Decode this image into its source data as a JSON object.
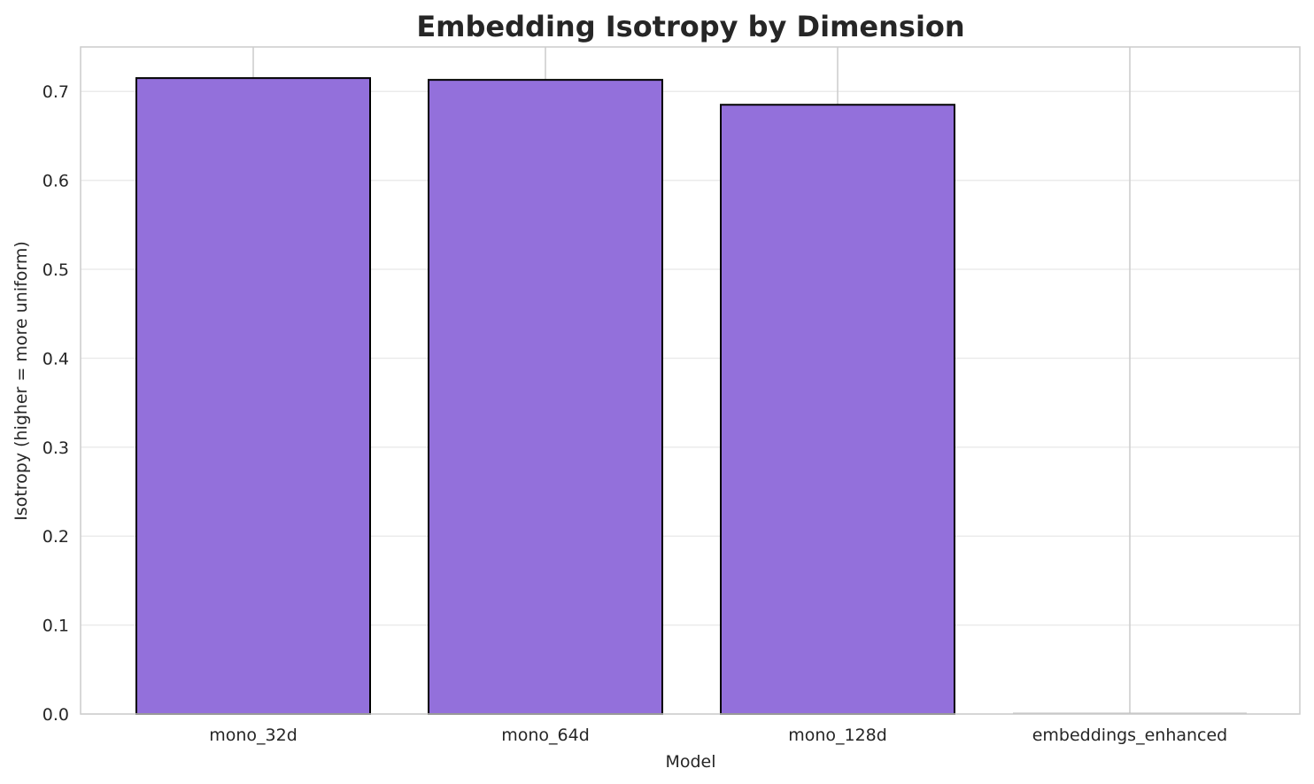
{
  "chart_data": {
    "type": "bar",
    "title": "Embedding Isotropy by Dimension",
    "xlabel": "Model",
    "ylabel": "Isotropy (higher = more uniform)",
    "categories": [
      "mono_32d",
      "mono_64d",
      "mono_128d",
      "embeddings_enhanced"
    ],
    "values": [
      0.715,
      0.713,
      0.685,
      0.0
    ],
    "ylim": [
      0,
      0.75
    ],
    "yticks": [
      0.0,
      0.1,
      0.2,
      0.3,
      0.4,
      0.5,
      0.6,
      0.7
    ],
    "ytick_labels": [
      "0.0",
      "0.1",
      "0.2",
      "0.3",
      "0.4",
      "0.5",
      "0.6",
      "0.7"
    ],
    "grid": true,
    "bar_color": "#9370db",
    "bar_edge_color": "#000000",
    "grid_color": "#ebebeb",
    "vgrid_color": "#cccccc",
    "frame_color": "#cccccc"
  }
}
